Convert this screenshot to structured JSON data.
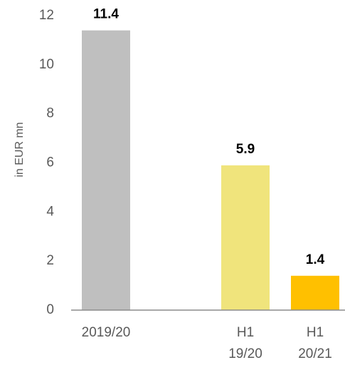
{
  "chart_data": {
    "type": "bar",
    "y_label": "in EUR mn",
    "categories": [
      "2019/20",
      null,
      "H1\n19/20",
      "H1\n20/21"
    ],
    "values": [
      11.4,
      null,
      5.9,
      1.4
    ],
    "colors": [
      "#bfbfbf",
      null,
      "#f0e47c",
      "#ffc000"
    ],
    "ylim": [
      0,
      12
    ],
    "yticks": [
      0,
      2,
      4,
      6,
      8,
      10,
      12
    ],
    "grid": false
  }
}
